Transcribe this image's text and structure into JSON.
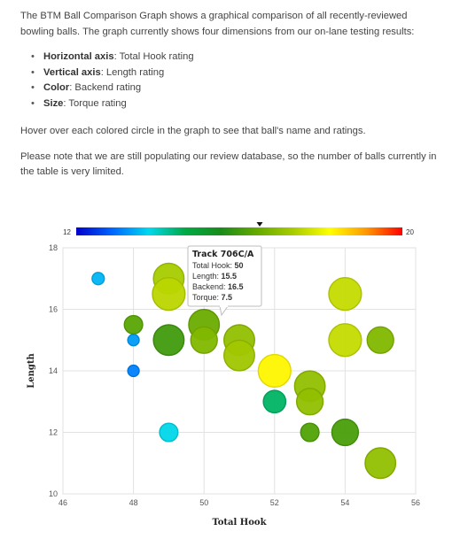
{
  "intro": {
    "paragraph1": "The BTM Ball Comparison Graph shows a graphical comparison of all recently-reviewed bowling balls. The graph currently shows four dimensions from our on-lane testing results:",
    "dimensions": [
      {
        "label": "Horizontal axis",
        "desc": ": Total Hook rating"
      },
      {
        "label": "Vertical axis",
        "desc": ": Length rating"
      },
      {
        "label": "Color",
        "desc": ": Backend rating"
      },
      {
        "label": "Size",
        "desc": ": Torque rating"
      }
    ],
    "paragraph2": "Hover over each colored circle in the graph to see that ball's name and ratings.",
    "paragraph3": "Please note that we are still populating our review database, so the number of balls currently in the table is very limited."
  },
  "colorbar": {
    "min_label": "12",
    "max_label": "20",
    "min": 12,
    "max": 20,
    "marker_value": 16.5
  },
  "tooltip": {
    "title": "Track 706C/A",
    "lines": [
      {
        "label": "Total Hook: ",
        "value": "50"
      },
      {
        "label": "Length: ",
        "value": "15.5"
      },
      {
        "label": "Backend: ",
        "value": "16.5"
      },
      {
        "label": "Torque: ",
        "value": "7.5"
      }
    ]
  },
  "chart_data": {
    "type": "scatter",
    "xlabel": "Total Hook",
    "ylabel": "Length",
    "xlim": [
      46,
      56
    ],
    "ylim": [
      10,
      18
    ],
    "xticks": [
      "46",
      "48",
      "50",
      "52",
      "54",
      "56"
    ],
    "yticks": [
      "10",
      "12",
      "14",
      "16",
      "18"
    ],
    "grid": true,
    "color_encodes": "Backend",
    "size_encodes": "Torque",
    "points": [
      {
        "x": 47,
        "y": 17,
        "backend": 13.5,
        "torque": 3
      },
      {
        "x": 48,
        "y": 15.5,
        "backend": 16.3,
        "torque": 4.5
      },
      {
        "x": 48,
        "y": 15,
        "backend": 13.3,
        "torque": 2.8
      },
      {
        "x": 48,
        "y": 14,
        "backend": 13.1,
        "torque": 2.8
      },
      {
        "x": 49,
        "y": 17,
        "backend": 17.3,
        "torque": 7.5
      },
      {
        "x": 49,
        "y": 16.5,
        "backend": 17.5,
        "torque": 8
      },
      {
        "x": 49,
        "y": 15,
        "backend": 16.0,
        "torque": 7.5
      },
      {
        "x": 49,
        "y": 12,
        "backend": 13.8,
        "torque": 4.5
      },
      {
        "x": 50,
        "y": 15.5,
        "backend": 16.5,
        "torque": 7.5
      },
      {
        "x": 50,
        "y": 15,
        "backend": 16.8,
        "torque": 6.5
      },
      {
        "x": 51,
        "y": 15,
        "backend": 17.0,
        "torque": 7.5
      },
      {
        "x": 51,
        "y": 14.5,
        "backend": 17.2,
        "torque": 7.5
      },
      {
        "x": 52,
        "y": 14,
        "backend": 18.3,
        "torque": 8
      },
      {
        "x": 52,
        "y": 13,
        "backend": 14.5,
        "torque": 5.5
      },
      {
        "x": 53,
        "y": 13.5,
        "backend": 17.0,
        "torque": 7.5
      },
      {
        "x": 53,
        "y": 13,
        "backend": 17.0,
        "torque": 6.5
      },
      {
        "x": 53,
        "y": 12,
        "backend": 16.2,
        "torque": 4.5
      },
      {
        "x": 54,
        "y": 16.5,
        "backend": 17.6,
        "torque": 8
      },
      {
        "x": 54,
        "y": 15,
        "backend": 17.6,
        "torque": 8
      },
      {
        "x": 54,
        "y": 12,
        "backend": 16.1,
        "torque": 6.5
      },
      {
        "x": 55,
        "y": 15,
        "backend": 16.8,
        "torque": 6.5
      },
      {
        "x": 55,
        "y": 11,
        "backend": 17.0,
        "torque": 7.5
      }
    ]
  },
  "colors": {
    "scale": [
      "#0000cc",
      "#0066ff",
      "#00d8ee",
      "#00aa44",
      "#1a8c1a",
      "#66aa00",
      "#aacc00",
      "#ffff00",
      "#ff9900",
      "#ff0000"
    ],
    "text": "#444444"
  }
}
